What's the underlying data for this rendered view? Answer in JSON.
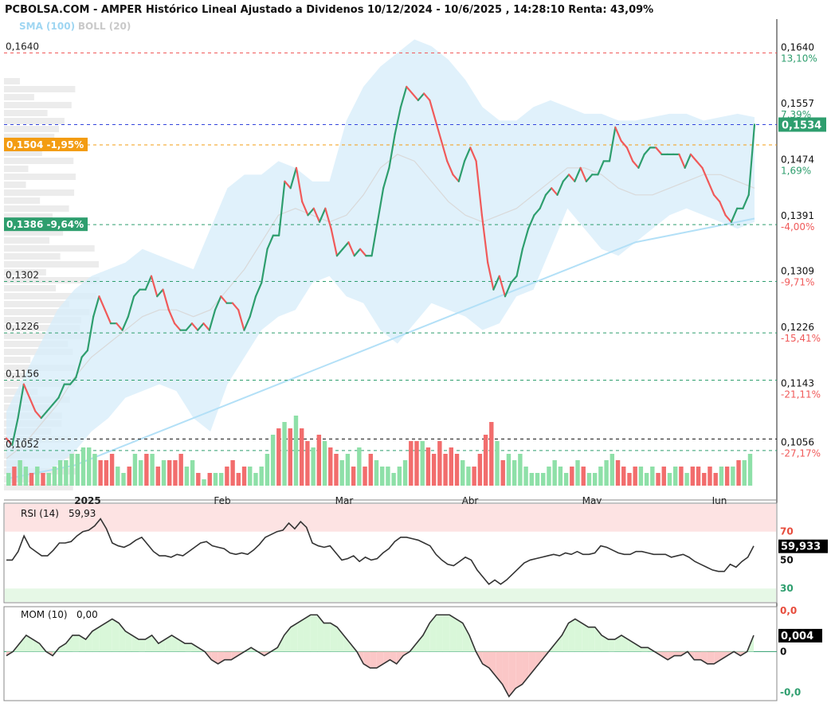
{
  "title": "PCBOLSA.COM - AMPER Histórico Lineal Ajustado a Dividenos 10/12/2024 - 10/6/2025 , 14:28:10 Renta: 43,09%",
  "subtitle": {
    "sma": "SMA (100)",
    "boll": "BOLL (20)"
  },
  "colors": {
    "up": "#2e9e6e",
    "down": "#f05a5a",
    "vol_up": "#8ee0a8",
    "vol_down": "#f26d6d",
    "band": "#d8edfa",
    "sma": "#b3e0f7",
    "boll_mid": "#d9d9d9",
    "rsi_line": "#333333",
    "mom_line": "#333333"
  },
  "chart_data": [
    {
      "type": "line",
      "name": "price",
      "ylim": [
        0.1,
        0.169
      ],
      "x_labels": [
        "2025",
        "Feb",
        "Mar",
        "Abr",
        "May",
        "Jun"
      ],
      "y_ticks_left": [
        "0,1640",
        "0,1302",
        "0,1226",
        "0,1156",
        "0,1052"
      ],
      "y_ticks_right": [
        {
          "value": 0.164,
          "label": "0,1640",
          "pct": "13,10%",
          "pct_color": "#2e9e6e"
        },
        {
          "value": 0.1557,
          "label": "0,1557",
          "pct": "7,39%",
          "pct_color": "#2e9e6e"
        },
        {
          "value": 0.1474,
          "label": "0,1474",
          "pct": "1,69%",
          "pct_color": "#2e9e6e"
        },
        {
          "value": 0.1391,
          "label": "0,1391",
          "pct": "-4,00%",
          "pct_color": "#f05a5a"
        },
        {
          "value": 0.1309,
          "label": "0,1309",
          "pct": "-9,71%",
          "pct_color": "#f05a5a"
        },
        {
          "value": 0.1226,
          "label": "0,1226",
          "pct": "-15,41%",
          "pct_color": "#f05a5a"
        },
        {
          "value": 0.1143,
          "label": "0,1143",
          "pct": "-21,11%",
          "pct_color": "#f05a5a"
        },
        {
          "value": 0.1056,
          "label": "0,1056",
          "pct": "-27,17%",
          "pct_color": "#f05a5a"
        }
      ],
      "current": {
        "value": 0.1534,
        "label": "0,1534"
      },
      "markers": [
        {
          "value": 0.1504,
          "label": "0,1504 -1,95%",
          "color": "#f39c12"
        },
        {
          "value": 0.1386,
          "label": "0,1386 -9,64%",
          "color": "#2e9e6e"
        }
      ],
      "ref_lines": [
        {
          "value": 0.164,
          "color": "#f05a5a"
        },
        {
          "value": 0.1534,
          "color": "#3344dd"
        },
        {
          "value": 0.1504,
          "color": "#f39c12"
        },
        {
          "value": 0.1386,
          "color": "#2e9e6e"
        },
        {
          "value": 0.1302,
          "color": "#2e9e6e"
        },
        {
          "value": 0.1226,
          "color": "#2e9e6e"
        },
        {
          "value": 0.1156,
          "color": "#2e9e6e"
        },
        {
          "value": 0.1069,
          "color": "#111111"
        },
        {
          "value": 0.1052,
          "color": "#2e9e6e"
        }
      ],
      "values": [
        0.107,
        0.106,
        0.11,
        0.115,
        0.113,
        0.111,
        0.11,
        0.111,
        0.112,
        0.113,
        0.115,
        0.115,
        0.116,
        0.119,
        0.12,
        0.125,
        0.128,
        0.126,
        0.124,
        0.124,
        0.123,
        0.125,
        0.128,
        0.129,
        0.129,
        0.131,
        0.128,
        0.129,
        0.126,
        0.124,
        0.123,
        0.123,
        0.124,
        0.123,
        0.124,
        0.123,
        0.126,
        0.128,
        0.127,
        0.127,
        0.126,
        0.123,
        0.125,
        0.128,
        0.13,
        0.135,
        0.137,
        0.137,
        0.145,
        0.144,
        0.147,
        0.142,
        0.14,
        0.141,
        0.139,
        0.141,
        0.138,
        0.134,
        0.135,
        0.136,
        0.134,
        0.135,
        0.134,
        0.134,
        0.139,
        0.144,
        0.147,
        0.152,
        0.156,
        0.159,
        0.158,
        0.157,
        0.158,
        0.157,
        0.154,
        0.151,
        0.148,
        0.146,
        0.145,
        0.148,
        0.15,
        0.148,
        0.14,
        0.133,
        0.129,
        0.131,
        0.128,
        0.13,
        0.131,
        0.135,
        0.138,
        0.14,
        0.141,
        0.143,
        0.144,
        0.143,
        0.145,
        0.146,
        0.145,
        0.147,
        0.145,
        0.146,
        0.146,
        0.148,
        0.148,
        0.153,
        0.151,
        0.15,
        0.148,
        0.147,
        0.149,
        0.15,
        0.15,
        0.149,
        0.149,
        0.149,
        0.149,
        0.147,
        0.149,
        0.148,
        0.147,
        0.145,
        0.143,
        0.142,
        0.14,
        0.139,
        0.141,
        0.141,
        0.143,
        0.1534
      ],
      "sma_100": [
        0.101,
        0.1015,
        0.102,
        0.1025,
        0.103,
        0.104,
        0.105,
        0.106,
        0.107,
        0.108,
        0.109,
        0.11,
        0.111,
        0.112,
        0.113,
        0.114,
        0.115,
        0.116,
        0.117,
        0.118,
        0.119,
        0.12,
        0.121,
        0.122,
        0.123,
        0.124,
        0.125,
        0.126,
        0.127,
        0.128,
        0.129,
        0.13,
        0.131,
        0.132,
        0.133,
        0.134,
        0.135,
        0.136,
        0.1365,
        0.137,
        0.1375,
        0.138,
        0.1385,
        0.139,
        0.1395
      ],
      "boll_mid": [
        0.104,
        0.106,
        0.109,
        0.112,
        0.116,
        0.119,
        0.121,
        0.123,
        0.125,
        0.126,
        0.126,
        0.125,
        0.126,
        0.129,
        0.132,
        0.136,
        0.14,
        0.141,
        0.14,
        0.139,
        0.14,
        0.143,
        0.147,
        0.149,
        0.148,
        0.145,
        0.142,
        0.14,
        0.139,
        0.14,
        0.141,
        0.143,
        0.145,
        0.147,
        0.147,
        0.146,
        0.144,
        0.143,
        0.143,
        0.144,
        0.145,
        0.146,
        0.146,
        0.145,
        0.144
      ],
      "boll_upper": [
        0.111,
        0.116,
        0.121,
        0.126,
        0.129,
        0.131,
        0.132,
        0.133,
        0.135,
        0.134,
        0.133,
        0.132,
        0.138,
        0.144,
        0.146,
        0.146,
        0.148,
        0.147,
        0.145,
        0.145,
        0.154,
        0.159,
        0.162,
        0.164,
        0.166,
        0.165,
        0.163,
        0.16,
        0.156,
        0.154,
        0.154,
        0.156,
        0.157,
        0.156,
        0.155,
        0.155,
        0.154,
        0.154,
        0.1545,
        0.155,
        0.155,
        0.154,
        0.1545,
        0.155,
        0.1545
      ],
      "boll_lower": [
        0.1,
        0.101,
        0.102,
        0.103,
        0.105,
        0.108,
        0.11,
        0.113,
        0.114,
        0.115,
        0.114,
        0.11,
        0.108,
        0.115,
        0.119,
        0.123,
        0.125,
        0.126,
        0.13,
        0.131,
        0.128,
        0.127,
        0.123,
        0.121,
        0.124,
        0.127,
        0.126,
        0.125,
        0.123,
        0.124,
        0.128,
        0.129,
        0.135,
        0.141,
        0.138,
        0.135,
        0.134,
        0.136,
        0.138,
        0.14,
        0.141,
        0.14,
        0.139,
        0.138,
        0.139
      ]
    },
    {
      "type": "bar",
      "name": "volume",
      "values": [
        2,
        3,
        4,
        3,
        2,
        3,
        2,
        2,
        3,
        4,
        4,
        5,
        5,
        6,
        6,
        5,
        4,
        4,
        5,
        3,
        2,
        3,
        5,
        4,
        5,
        5,
        3,
        4,
        4,
        4,
        5,
        3,
        4,
        2,
        1,
        2,
        2,
        2,
        3,
        4,
        2,
        3,
        3,
        2,
        3,
        5,
        8,
        9,
        10,
        9,
        11,
        9,
        7,
        6,
        8,
        7,
        6,
        5,
        4,
        5,
        3,
        6,
        3,
        5,
        4,
        3,
        3,
        2,
        3,
        4,
        7,
        7,
        7,
        6,
        5,
        7,
        5,
        6,
        5,
        4,
        3,
        3,
        5,
        8,
        10,
        7,
        4,
        5,
        4,
        5,
        3,
        2,
        2,
        2,
        3,
        4,
        3,
        2,
        3,
        4,
        3,
        2,
        2,
        3,
        4,
        5,
        4,
        3,
        2,
        3,
        3,
        2,
        3,
        2,
        3,
        2,
        3,
        3,
        2,
        3,
        3,
        2,
        3,
        2,
        3,
        3,
        3,
        4,
        4,
        5
      ],
      "colors_up": [
        true,
        false,
        true,
        true,
        false,
        true,
        false,
        true,
        true,
        true,
        true,
        true,
        true,
        true,
        true,
        true,
        false,
        false,
        false,
        true,
        true,
        false,
        true,
        true,
        false,
        true,
        false,
        true,
        false,
        false,
        false,
        true,
        true,
        false,
        true,
        false,
        true,
        true,
        false,
        false,
        false,
        false,
        true,
        true,
        true,
        true,
        true,
        false,
        true,
        false,
        true,
        false,
        false,
        true,
        false,
        true,
        false,
        false,
        true,
        true,
        false,
        true,
        false,
        false,
        true,
        true,
        true,
        true,
        true,
        true,
        false,
        false,
        true,
        false,
        false,
        false,
        false,
        false,
        false,
        true,
        true,
        false,
        false,
        false,
        false,
        true,
        false,
        true,
        true,
        true,
        true,
        true,
        true,
        true,
        true,
        true,
        true,
        true,
        false,
        true,
        false,
        true,
        true,
        true,
        true,
        true,
        false,
        false,
        false,
        false,
        true,
        true,
        true,
        false,
        false,
        true,
        true,
        false,
        true,
        false,
        false,
        false,
        false,
        false,
        true,
        false,
        true,
        false,
        true,
        true
      ],
      "ylim": [
        0,
        11
      ]
    },
    {
      "type": "line",
      "name": "RSI (14)",
      "label": "RSI (14)",
      "current_text": "59,93",
      "current_badge": "59,933",
      "ylim": [
        20,
        90
      ],
      "y_ticks": [
        {
          "value": 70,
          "label": "70",
          "color": "#e74c3c"
        },
        {
          "value": 50,
          "label": "50",
          "color": "#111111"
        },
        {
          "value": 30,
          "label": "30",
          "color": "#2e9e6e"
        }
      ],
      "values": [
        50,
        50,
        56,
        67,
        59,
        56,
        53,
        53,
        57,
        62,
        62,
        63,
        67,
        70,
        71,
        74,
        79,
        72,
        62,
        60,
        59,
        61,
        64,
        66,
        61,
        56,
        53,
        53,
        52,
        54,
        53,
        56,
        59,
        62,
        63,
        60,
        59,
        58,
        55,
        54,
        55,
        54,
        57,
        61,
        66,
        68,
        70,
        71,
        76,
        72,
        77,
        73,
        62,
        60,
        59,
        60,
        55,
        50,
        51,
        53,
        49,
        52,
        50,
        51,
        55,
        58,
        63,
        66,
        66,
        65,
        64,
        62,
        60,
        54,
        50,
        47,
        46,
        49,
        52,
        50,
        43,
        38,
        33,
        36,
        33,
        36,
        40,
        44,
        48,
        50,
        51,
        52,
        53,
        54,
        53,
        55,
        54,
        56,
        54,
        54,
        55,
        60,
        59,
        57,
        55,
        54,
        54,
        56,
        56,
        55,
        54,
        54,
        54,
        52,
        53,
        54,
        52,
        49,
        47,
        45,
        43,
        42,
        42,
        47,
        45,
        49,
        52,
        59.93
      ],
      "overbought_band": [
        70,
        90
      ],
      "oversold_band": [
        25,
        30
      ]
    },
    {
      "type": "area",
      "name": "MOM (10)",
      "label": "MOM (10)",
      "current_text": "0,00",
      "current_badge": "0,004",
      "ylim": [
        -0.012,
        0.011
      ],
      "y_ticks": [
        {
          "value": 0.01,
          "label": "0,0",
          "color": "#e74c3c"
        },
        {
          "value": 0.0,
          "label": "0",
          "color": "#111111"
        },
        {
          "value": -0.01,
          "label": "-0,0",
          "color": "#2e9e6e"
        }
      ],
      "values": [
        -0.001,
        0.0,
        0.002,
        0.004,
        0.003,
        0.002,
        0.0,
        -0.001,
        0.001,
        0.002,
        0.004,
        0.004,
        0.003,
        0.005,
        0.006,
        0.007,
        0.008,
        0.007,
        0.005,
        0.004,
        0.003,
        0.003,
        0.004,
        0.002,
        0.003,
        0.004,
        0.003,
        0.002,
        0.002,
        0.001,
        0.0,
        -0.002,
        -0.003,
        -0.002,
        -0.002,
        -0.001,
        0.0,
        0.001,
        0.0,
        -0.001,
        0.0,
        0.001,
        0.004,
        0.006,
        0.007,
        0.008,
        0.009,
        0.009,
        0.007,
        0.007,
        0.006,
        0.004,
        0.002,
        0.0,
        -0.003,
        -0.004,
        -0.004,
        -0.003,
        -0.002,
        -0.003,
        -0.001,
        0.0,
        0.002,
        0.004,
        0.007,
        0.009,
        0.009,
        0.009,
        0.008,
        0.007,
        0.004,
        0.0,
        -0.003,
        -0.004,
        -0.006,
        -0.008,
        -0.011,
        -0.009,
        -0.008,
        -0.006,
        -0.004,
        -0.002,
        0.0,
        0.002,
        0.004,
        0.007,
        0.008,
        0.007,
        0.006,
        0.006,
        0.004,
        0.003,
        0.003,
        0.004,
        0.003,
        0.002,
        0.001,
        0.001,
        0.0,
        -0.001,
        -0.002,
        -0.001,
        -0.001,
        0.0,
        -0.002,
        -0.002,
        -0.003,
        -0.003,
        -0.002,
        -0.001,
        0.0,
        -0.001,
        0.0,
        0.004
      ]
    }
  ]
}
